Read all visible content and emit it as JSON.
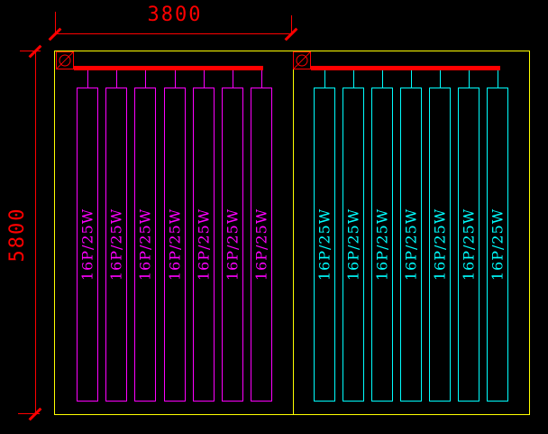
{
  "drawing": {
    "type": "electrical-lighting-layout",
    "dimensions": {
      "top_width": "3800",
      "left_height": "5800"
    },
    "symbols": {
      "diameter": "Ø"
    },
    "panels": [
      {
        "name": "left",
        "bar_count": 7,
        "bar_label": "16P/25W",
        "color": "#FF00FF"
      },
      {
        "name": "right",
        "bar_count": 7,
        "bar_label": "16P/25W",
        "color": "#00FFFF"
      }
    ],
    "colors": {
      "background": "#000000",
      "outline": "#FFFF00",
      "dimension": "#FF0000",
      "busbar": "#FF0000",
      "left_bars": "#FF00FF",
      "right_bars": "#00FFFF"
    }
  }
}
